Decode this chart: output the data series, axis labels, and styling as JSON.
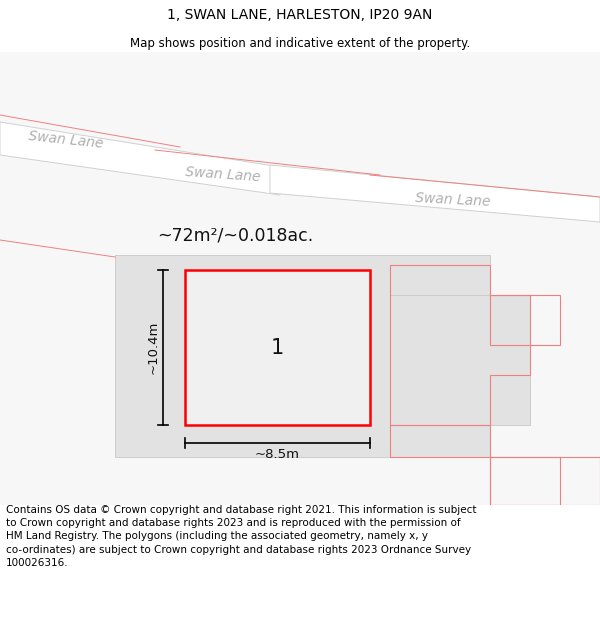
{
  "title": "1, SWAN LANE, HARLESTON, IP20 9AN",
  "subtitle": "Map shows position and indicative extent of the property.",
  "footer": "Contains OS data © Crown copyright and database right 2021. This information is subject\nto Crown copyright and database rights 2023 and is reproduced with the permission of\nHM Land Registry. The polygons (including the associated geometry, namely x, y\nco-ordinates) are subject to Crown copyright and database rights 2023 Ordnance Survey\n100026316.",
  "area_label": "~72m²/~0.018ac.",
  "width_label": "~8.5m",
  "height_label": "~10.4m",
  "plot_label": "1",
  "bg_color": "#ffffff",
  "road_label_color": "#b0b0b0",
  "title_fontsize": 10,
  "subtitle_fontsize": 8.5,
  "footer_fontsize": 7.5
}
